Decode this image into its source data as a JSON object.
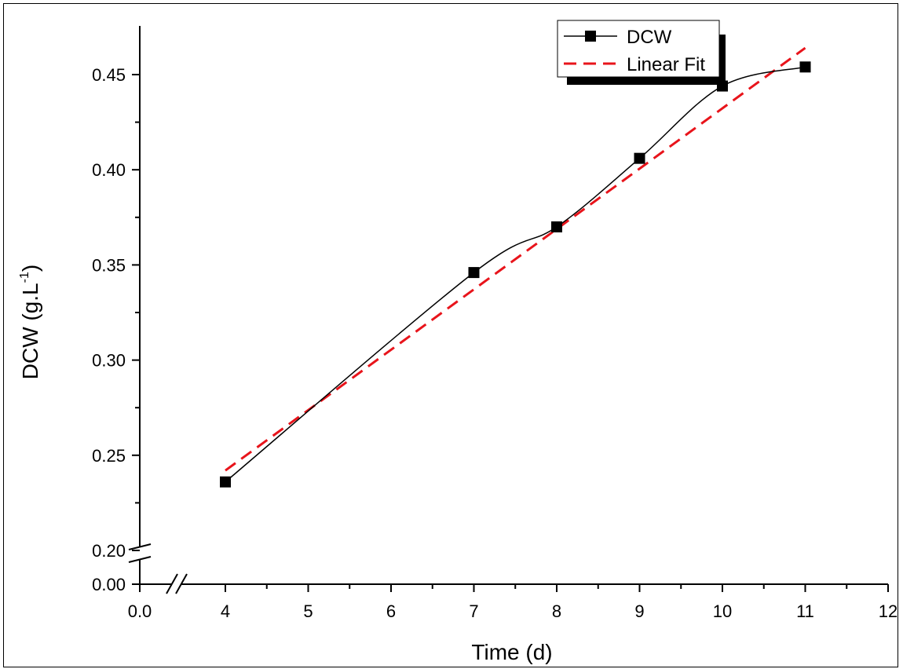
{
  "chart_data": {
    "type": "line",
    "title": "",
    "xlabel": "Time (d)",
    "ylabel": "DCW (g.L",
    "ylabel_sup": "-1",
    "ylabel_close": ")",
    "axis_break": {
      "x": [
        0.3,
        4
      ],
      "y": [
        0.0,
        0.2
      ]
    },
    "xlim": [
      0,
      12
    ],
    "ylim": [
      0.2,
      0.475
    ],
    "x_ticks": [
      {
        "value": 0,
        "label": "0.0"
      },
      {
        "value": 4,
        "label": "4"
      },
      {
        "value": 5,
        "label": "5"
      },
      {
        "value": 6,
        "label": "6"
      },
      {
        "value": 7,
        "label": "7"
      },
      {
        "value": 8,
        "label": "8"
      },
      {
        "value": 9,
        "label": "9"
      },
      {
        "value": 10,
        "label": "10"
      },
      {
        "value": 11,
        "label": "11"
      },
      {
        "value": 12,
        "label": "12"
      }
    ],
    "y_ticks": [
      {
        "value": 0.0,
        "label": "0.00"
      },
      {
        "value": 0.2,
        "label": "0.20"
      },
      {
        "value": 0.25,
        "label": "0.25"
      },
      {
        "value": 0.3,
        "label": "0.30"
      },
      {
        "value": 0.35,
        "label": "0.35"
      },
      {
        "value": 0.4,
        "label": "0.40"
      },
      {
        "value": 0.45,
        "label": "0.45"
      }
    ],
    "series": [
      {
        "name": "DCW",
        "marker": "square",
        "color": "#000000",
        "x": [
          4,
          7,
          8,
          9,
          10,
          11
        ],
        "y": [
          0.236,
          0.346,
          0.37,
          0.406,
          0.444,
          0.454
        ]
      },
      {
        "name": "Linear Fit",
        "style": "dashed",
        "color": "#e8141b",
        "x": [
          4,
          11
        ],
        "y": [
          0.242,
          0.464
        ]
      }
    ],
    "legend": {
      "position": "top-right"
    },
    "grid": false
  }
}
